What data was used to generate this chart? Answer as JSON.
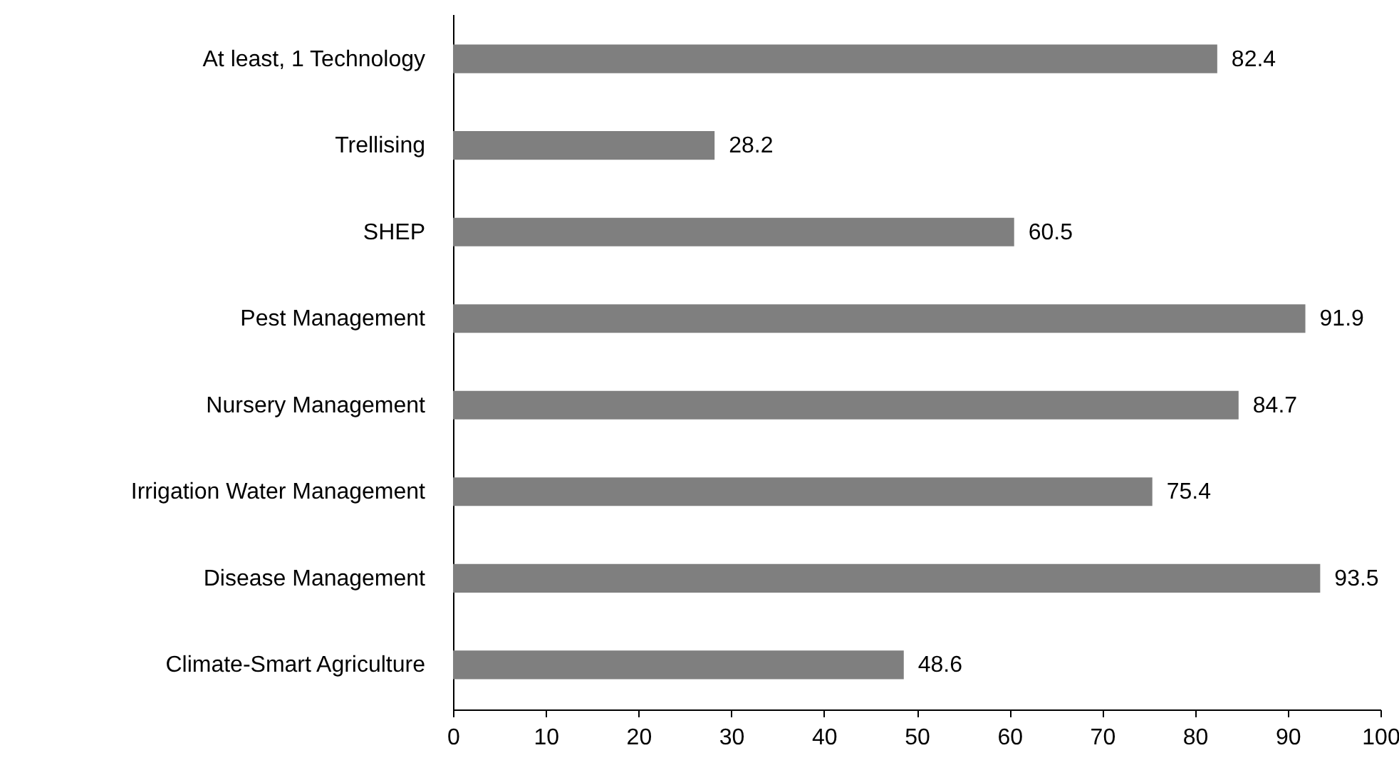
{
  "chart_data": {
    "type": "bar",
    "orientation": "horizontal",
    "categories": [
      "At least, 1 Technology",
      "Trellising",
      "SHEP",
      "Pest Management",
      "Nursery Management",
      "Irrigation Water Management",
      "Disease Management",
      "Climate-Smart Agriculture"
    ],
    "values": [
      82.4,
      28.2,
      60.5,
      91.9,
      84.7,
      75.4,
      93.5,
      48.6
    ],
    "color": "#7f7f7f",
    "xlim": [
      0,
      100
    ],
    "xticks": [
      0,
      10,
      20,
      30,
      40,
      50,
      60,
      70,
      80,
      90,
      100
    ],
    "data_labels": true
  }
}
